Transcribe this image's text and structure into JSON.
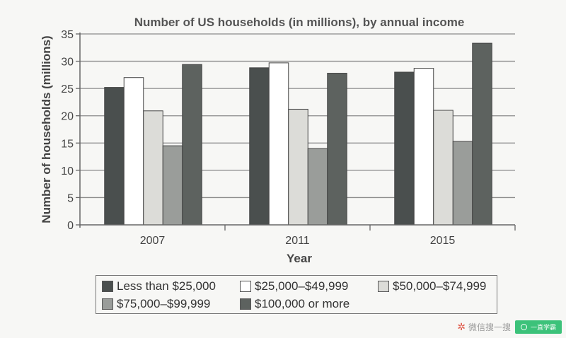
{
  "chart_data": {
    "type": "bar",
    "title": "Number of US households (in millions), by annual income",
    "xlabel": "Year",
    "ylabel": "Number of households (millions)",
    "categories": [
      "2007",
      "2011",
      "2015"
    ],
    "ylim": [
      0,
      35
    ],
    "yticks": [
      0,
      5,
      10,
      15,
      20,
      25,
      30,
      35
    ],
    "grid": true,
    "legend_position": "bottom",
    "series": [
      {
        "name": "Less than $25,000",
        "color": "#4a4f4e",
        "values": [
          25.2,
          28.8,
          28.0
        ]
      },
      {
        "name": "$25,000–$49,999",
        "color": "#ffffff",
        "values": [
          27.0,
          29.7,
          28.7
        ]
      },
      {
        "name": "$50,000–$74,999",
        "color": "#dcdcd8",
        "values": [
          20.9,
          21.2,
          21.0
        ]
      },
      {
        "name": "$75,000–$99,999",
        "color": "#9a9d9a",
        "values": [
          14.5,
          14.0,
          15.3
        ]
      },
      {
        "name": "$100,000 or more",
        "color": "#5d625f",
        "values": [
          29.4,
          27.8,
          33.3
        ]
      }
    ]
  },
  "watermark": {
    "text": "微信搜一搜",
    "badge": "一直学霸",
    "icon": "star-icon"
  }
}
